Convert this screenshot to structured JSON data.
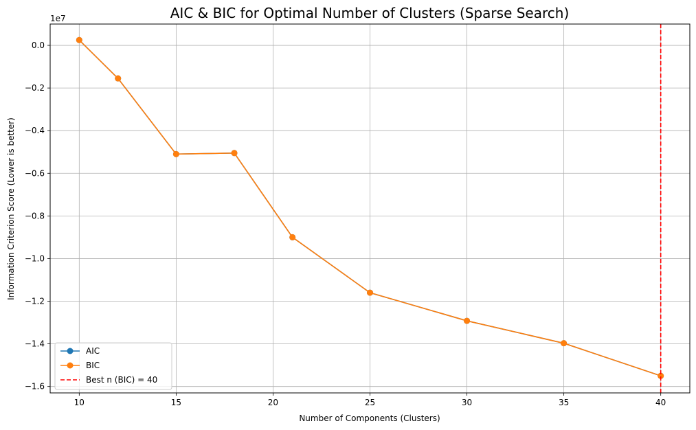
{
  "chart_data": {
    "type": "line",
    "title": "AIC & BIC for Optimal Number of Clusters (Sparse Search)",
    "xlabel": "Number of Components (Clusters)",
    "ylabel": "Information Criterion Score (Lower is better)",
    "y_offset_label": "1e7",
    "y_scale": 10000000,
    "x": [
      10,
      12,
      15,
      18,
      21,
      25,
      30,
      35,
      40
    ],
    "series": [
      {
        "name": "AIC",
        "color": "#1f77b4",
        "marker": "circle",
        "values": [
          250000,
          -1550000,
          -5100000,
          -5050000,
          -9000000,
          -11600000,
          -12920000,
          -13970000,
          -15500000
        ]
      },
      {
        "name": "BIC",
        "color": "#ff7f0e",
        "marker": "circle",
        "values": [
          250000,
          -1550000,
          -5100000,
          -5050000,
          -9000000,
          -11600000,
          -12920000,
          -13970000,
          -15500000
        ]
      }
    ],
    "vline": {
      "x": 40,
      "label": "Best n (BIC) = 40",
      "color": "#ff0000",
      "style": "dashed"
    },
    "xlim": [
      8.5,
      41.5
    ],
    "ylim": [
      -16300000,
      1000000
    ],
    "xticks": [
      10,
      15,
      20,
      25,
      30,
      35,
      40
    ],
    "xtick_labels": [
      "10",
      "15",
      "20",
      "25",
      "30",
      "35",
      "40"
    ],
    "yticks": [
      0,
      -2000000,
      -4000000,
      -6000000,
      -8000000,
      -10000000,
      -12000000,
      -14000000,
      -16000000
    ],
    "ytick_labels": [
      "0.0",
      "−0.2",
      "−0.4",
      "−0.6",
      "−0.8",
      "−1.0",
      "−1.2",
      "−1.4",
      "−1.6"
    ],
    "grid": true,
    "legend_position": "lower-left"
  }
}
